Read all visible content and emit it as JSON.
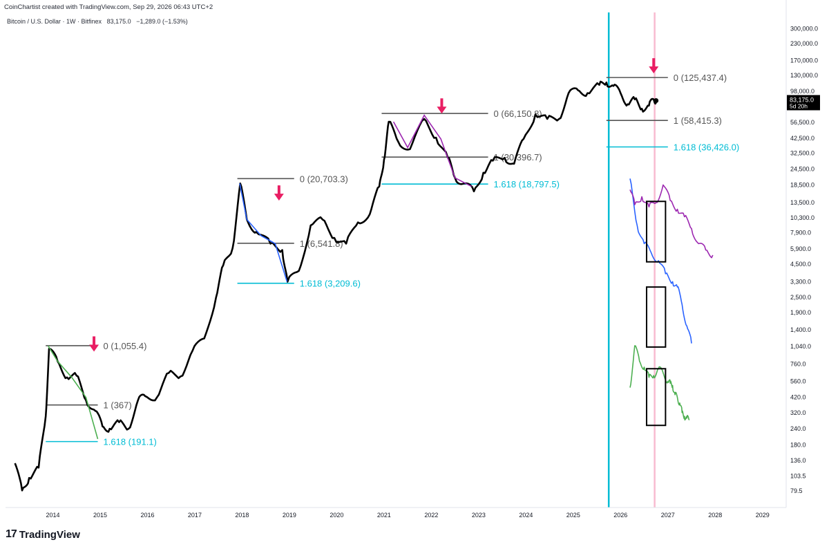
{
  "header": {
    "attribution": "CoinChartist created with TradingView.com, Sep 29, 2026 06:43 UTC+2",
    "symbol_line": "Bitcoin / U.S. Dollar · 1W · Bitfinex",
    "price": "83,175.0",
    "change": "−1,289.0 (−1.53%)"
  },
  "price_badge": {
    "price": "83,175.0",
    "countdown": "5d 20h"
  },
  "brand": {
    "name": "TradingView"
  },
  "colors": {
    "price_line": "#000000",
    "fib_level": "#555555",
    "fib_ext": "#00bcd4",
    "arrow": "#e91e63",
    "vline_cyan": "#00bcd4",
    "vline_pink": "#f8bbd0",
    "cycle_2014": "#4caf50",
    "cycle_2018": "#2962ff",
    "cycle_2022": "#9c27b0"
  },
  "chart_data": {
    "type": "line",
    "title": "Bitcoin / U.S. Dollar · 1W · Bitfinex",
    "y_scale": "log",
    "ylim": [
      62,
      400000
    ],
    "xlim": [
      2013.0,
      2029.5
    ],
    "x_ticks": [
      "2014",
      "2015",
      "2016",
      "2017",
      "2018",
      "2019",
      "2020",
      "2021",
      "2022",
      "2023",
      "2024",
      "2025",
      "2026",
      "2027",
      "2028",
      "2029"
    ],
    "y_ticks": [
      "300,000.0",
      "230,000.0",
      "170,000.0",
      "130,000.0",
      "98,000.0",
      "56,500.0",
      "42,500.0",
      "32,500.0",
      "24,500.0",
      "18,500.0",
      "13,500.0",
      "10,300.0",
      "7,900.0",
      "5,900.0",
      "4,500.0",
      "3,300.0",
      "2,500.0",
      "1,900.0",
      "1,400.0",
      "1,040.0",
      "760.0",
      "560.0",
      "420.0",
      "320.0",
      "240.0",
      "180.0",
      "136.0",
      "103.5",
      "79.5"
    ],
    "series": [
      {
        "name": "",
        "color": "#000000",
        "x": [
          2013.2,
          2013.35,
          2013.5,
          2013.7,
          2013.85,
          2013.92,
          2014.1,
          2014.3,
          2014.5,
          2014.7,
          2014.9,
          2015.05,
          2015.2,
          2015.4,
          2015.6,
          2015.8,
          2015.95,
          2016.2,
          2016.45,
          2016.7,
          2016.95,
          2017.2,
          2017.45,
          2017.6,
          2017.8,
          2017.96,
          2018.1,
          2018.3,
          2018.6,
          2018.85,
          2018.96,
          2019.2,
          2019.45,
          2019.7,
          2019.95,
          2020.2,
          2020.45,
          2020.7,
          2020.9,
          2021.0,
          2021.1,
          2021.3,
          2021.55,
          2021.85,
          2022.1,
          2022.35,
          2022.5,
          2022.7,
          2022.9,
          2023.1,
          2023.3,
          2023.55,
          2023.75,
          2023.95,
          2024.2,
          2024.45,
          2024.7,
          2024.9,
          2025.1,
          2025.3,
          2025.55,
          2025.7,
          2025.85,
          2026.0,
          2026.15,
          2026.3,
          2026.45,
          2026.6,
          2026.7,
          2026.75
        ],
        "y": [
          130,
          80,
          100,
          120,
          300,
          1000,
          800,
          600,
          620,
          400,
          330,
          250,
          240,
          270,
          240,
          400,
          430,
          420,
          650,
          610,
          960,
          1200,
          2500,
          4400,
          6000,
          19000,
          10000,
          8000,
          6500,
          5800,
          3300,
          4000,
          9000,
          10000,
          7200,
          6500,
          9500,
          11000,
          18000,
          29000,
          57000,
          40000,
          35000,
          60000,
          43000,
          30000,
          21000,
          19000,
          16500,
          23000,
          28500,
          30000,
          27000,
          42000,
          65000,
          60000,
          60000,
          95000,
          100000,
          95000,
          110000,
          115000,
          108000,
          95000,
          78000,
          85000,
          72000,
          76000,
          85000,
          83175
        ]
      },
      {
        "name": "",
        "color": "#4caf50",
        "x": [
          2026.2,
          2026.3,
          2026.4,
          2026.5,
          2026.6,
          2026.7,
          2026.8,
          2026.9,
          2027.0,
          2027.05,
          2027.1,
          2027.15,
          2027.2,
          2027.25,
          2027.3,
          2027.35,
          2027.4,
          2027.45
        ],
        "y": [
          500,
          1055,
          800,
          720,
          600,
          620,
          700,
          650,
          560,
          540,
          520,
          440,
          420,
          380,
          320,
          300,
          290,
          280
        ]
      },
      {
        "name": "",
        "color": "#2962ff",
        "x": [
          2026.2,
          2026.35,
          2026.5,
          2026.65,
          2026.8,
          2026.95,
          2027.1,
          2027.2,
          2027.3,
          2027.4,
          2027.5
        ],
        "y": [
          20703,
          9000,
          6500,
          5500,
          4800,
          3800,
          3300,
          3000,
          2200,
          1500,
          1100
        ]
      },
      {
        "name": "",
        "color": "#9c27b0",
        "x": [
          2026.2,
          2026.3,
          2026.45,
          2026.6,
          2026.75,
          2026.9,
          2027.05,
          2027.2,
          2027.35,
          2027.5,
          2027.65,
          2027.8,
          2027.95
        ],
        "y": [
          17000,
          13000,
          15000,
          12500,
          13500,
          18500,
          14000,
          12000,
          10500,
          8500,
          6500,
          5800,
          5300
        ]
      }
    ],
    "annotations": [
      {
        "label": "0 (1,055.4)",
        "kind": "fib"
      },
      {
        "label": "1 (367)",
        "kind": "fib"
      },
      {
        "label": "1.618 (191.1)",
        "kind": "ext"
      },
      {
        "label": "0 (20,703.3)",
        "kind": "fib"
      },
      {
        "label": "1 (6,541.8)",
        "kind": "fib"
      },
      {
        "label": "1.618 (3,209.6)",
        "kind": "ext"
      },
      {
        "label": "0 (66,150.8)",
        "kind": "fib"
      },
      {
        "label": "1 (30,396.7)",
        "kind": "fib"
      },
      {
        "label": "1.618 (18,797.5)",
        "kind": "ext"
      },
      {
        "label": "0 (125,437.4)",
        "kind": "fib"
      },
      {
        "label": "1 (58,415.3)",
        "kind": "fib"
      },
      {
        "label": "1.618 (36,426.0)",
        "kind": "ext"
      }
    ],
    "grid": false,
    "legend": "none"
  }
}
